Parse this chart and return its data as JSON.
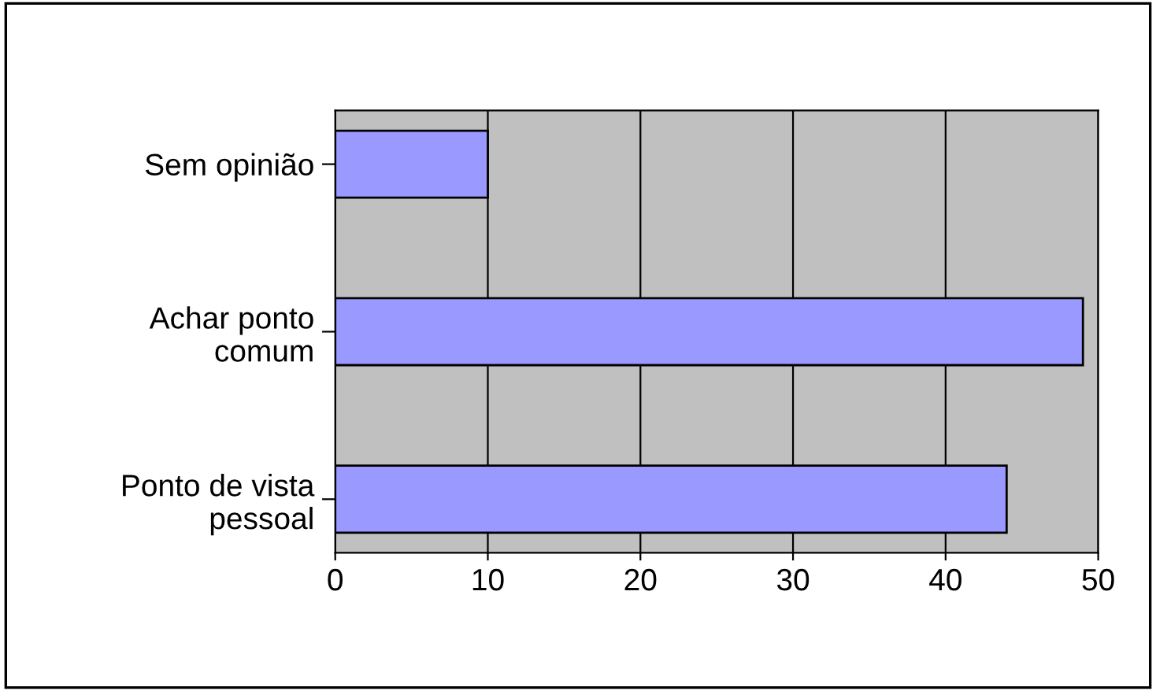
{
  "chart_data": {
    "type": "bar",
    "orientation": "horizontal",
    "categories": [
      "Sem opinião",
      "Achar ponto\ncomum",
      "Ponto de vista\npessoal"
    ],
    "values": [
      10,
      49,
      44
    ],
    "color": "#9999ff",
    "xlim": [
      0,
      50
    ],
    "xticks": [
      0,
      10,
      20,
      30,
      40,
      50
    ],
    "grid": "x",
    "legend": false
  }
}
